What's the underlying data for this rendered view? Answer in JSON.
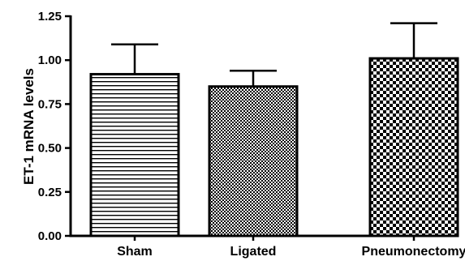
{
  "chart_data": {
    "type": "bar",
    "title": "",
    "xlabel": "",
    "ylabel": "ET-1 mRNA levels",
    "ylim": [
      0,
      1.25
    ],
    "yticks": [
      "0.00",
      "0.25",
      "0.50",
      "0.75",
      "1.00",
      "1.25"
    ],
    "categories": [
      "Sham",
      "Ligated",
      "Pneumonectomy"
    ],
    "values": [
      0.92,
      0.85,
      1.01
    ],
    "error_upper": [
      1.09,
      0.94,
      1.21
    ],
    "bar_fill_patterns": [
      "horizontal-lines",
      "fine-checker",
      "coarse-checker"
    ],
    "grid": false,
    "colors": {
      "bars": "#000000",
      "background": "#ffffff"
    }
  }
}
